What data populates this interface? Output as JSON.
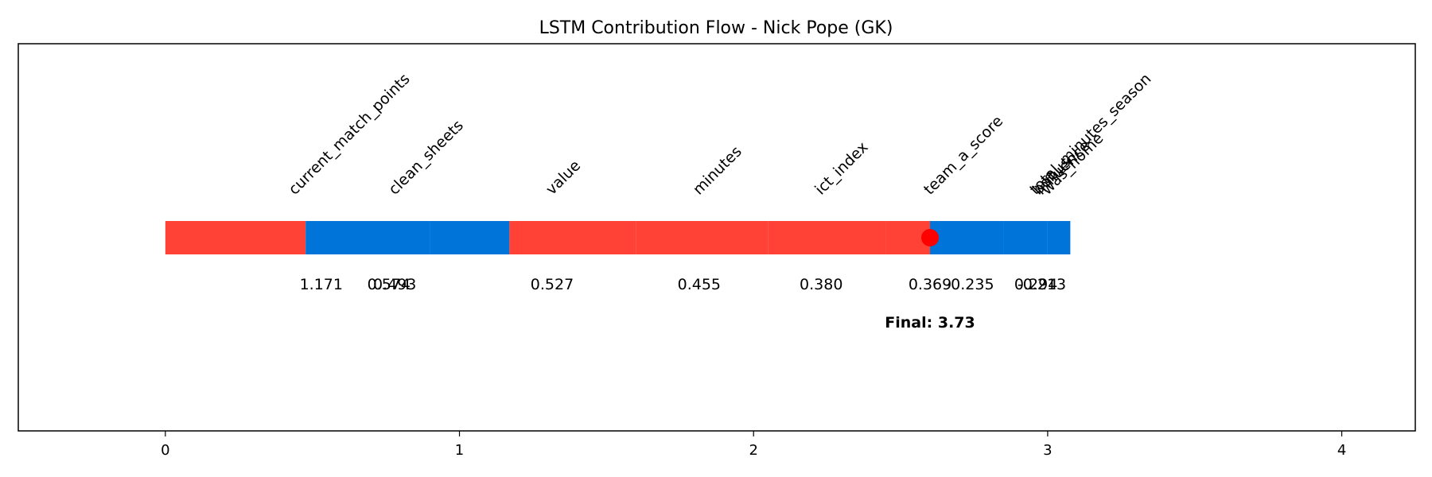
{
  "chart_data": {
    "type": "bar",
    "title": "LSTM Contribution Flow - Nick Pope (GK)",
    "xlabel": "",
    "ylabel": "",
    "xlim": [
      -0.5,
      4.25
    ],
    "grid": false,
    "legend": "none",
    "x_ticks": [
      0,
      1,
      2,
      3,
      4
    ],
    "features": [
      {
        "name": "current_match_points",
        "start": 0.0,
        "end": 0.477,
        "value_label": "1.171",
        "label_x": 0.53,
        "color": "#ff4136"
      },
      {
        "name": "clean_sheets",
        "start": 0.477,
        "end": 0.9,
        "value_label": "0.574",
        "label_x": 0.76,
        "color": "#0074d9"
      },
      {
        "name": "value",
        "start": 0.9,
        "end": 1.17,
        "value_label": "0.493",
        "label_x": 0.78,
        "color": "#0074d9"
      },
      {
        "name": "minutes",
        "start": 1.17,
        "end": 1.6,
        "value_label": "0.527",
        "label_x": 1.315,
        "color": "#ff4136"
      },
      {
        "name": "ict_index",
        "start": 1.6,
        "end": 2.05,
        "value_label": "0.455",
        "label_x": 1.815,
        "color": "#ff4136"
      },
      {
        "name": "team_a_score",
        "start": 2.05,
        "end": 2.45,
        "value_label": "0.380",
        "label_x": 2.23,
        "color": "#ff4136"
      },
      {
        "name": "total_minutes_season",
        "start": 2.45,
        "end": 2.6,
        "value_label": "0.369",
        "label_x": 2.6,
        "color": "#ff4136"
      },
      {
        "name": "bonus",
        "start": 2.6,
        "end": 2.85,
        "value_label": "-0.235",
        "label_x": 2.735,
        "color": "#0074d9"
      },
      {
        "name": "influence",
        "start": 2.85,
        "end": 3.0,
        "value_label": "0.294",
        "label_x": 2.96,
        "color": "#0074d9"
      },
      {
        "name": "was_home",
        "start": 3.0,
        "end": 3.077,
        "value_label": "-0.213",
        "label_x": 2.98,
        "color": "#0074d9"
      }
    ],
    "feature_label_x": [
      0.44,
      0.78,
      1.315,
      1.815,
      2.23,
      2.6,
      2.96,
      2.97,
      2.98,
      3.0
    ],
    "marker": {
      "x": 2.6,
      "color": "#ff0000"
    },
    "final_label": "Final: 3.73",
    "final_label_x": 2.6
  }
}
